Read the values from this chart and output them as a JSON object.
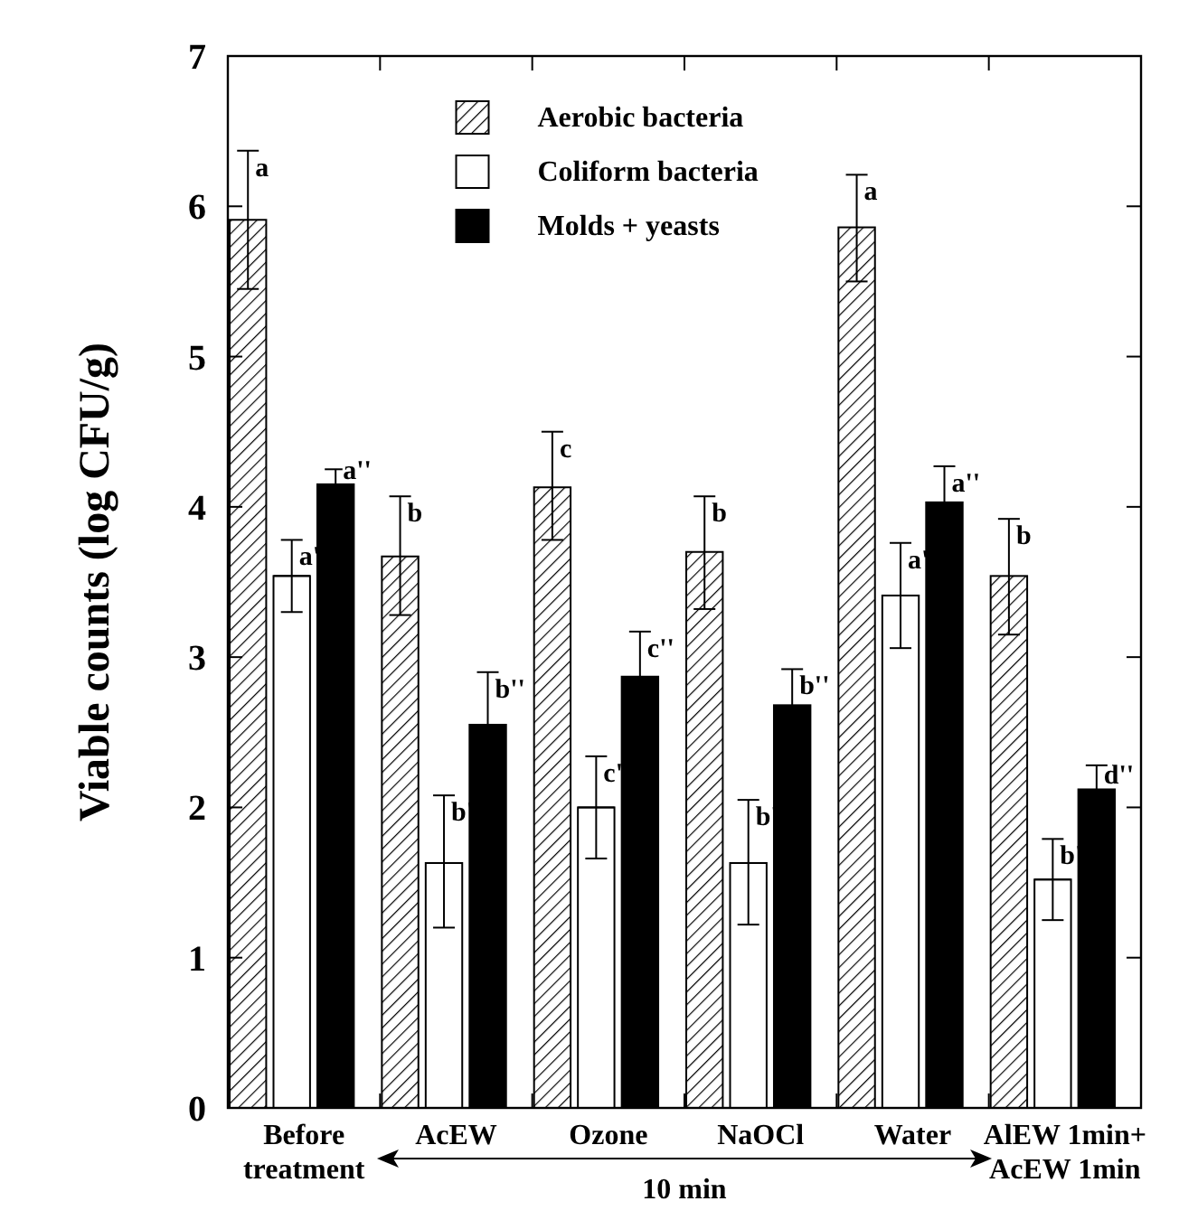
{
  "chart_data": {
    "type": "bar",
    "ylabel": "Viable counts  (log CFU/g)",
    "categories": [
      "Before\ntreatment",
      "AcEW",
      "Ozone",
      "NaOCl",
      "Water",
      "AlEW 1min+\nAcEW 1min"
    ],
    "series": [
      {
        "name": "Aerobic bacteria",
        "color": "#000000",
        "values": [
          5.91,
          3.67,
          4.13,
          3.7,
          5.86,
          3.54
        ],
        "errors": [
          [
            5.45,
            6.37
          ],
          [
            3.28,
            4.07
          ],
          [
            3.78,
            4.5
          ],
          [
            3.32,
            4.07
          ],
          [
            5.5,
            6.21
          ],
          [
            3.15,
            3.92
          ]
        ],
        "value_labels": [
          "a",
          "b",
          "c",
          "b",
          "a",
          "b"
        ]
      },
      {
        "name": "Coliform bacteria",
        "color": "#ffffff",
        "values": [
          3.54,
          1.63,
          2.0,
          1.63,
          3.41,
          1.52
        ],
        "errors": [
          [
            3.3,
            3.78
          ],
          [
            1.2,
            2.08
          ],
          [
            1.66,
            2.34
          ],
          [
            1.22,
            2.05
          ],
          [
            3.06,
            3.76
          ],
          [
            1.25,
            1.79
          ]
        ],
        "value_labels": [
          "a'",
          "b'",
          "c'",
          "b'",
          "a'",
          "b'"
        ]
      },
      {
        "name": "Molds + yeasts",
        "color": "#000000",
        "values": [
          4.15,
          2.55,
          2.87,
          2.68,
          4.03,
          2.12
        ],
        "errors": [
          0.1,
          0.35,
          0.3,
          0.24,
          0.24,
          0.16
        ],
        "value_labels": [
          "a''",
          "b''",
          "c''",
          "b''",
          "a''",
          "d''"
        ]
      }
    ],
    "ylim": [
      0,
      7
    ],
    "yticks": [
      0,
      1,
      2,
      3,
      4,
      5,
      6,
      7
    ],
    "grid": false,
    "legend": "top",
    "annotations": [
      "10 min"
    ]
  }
}
